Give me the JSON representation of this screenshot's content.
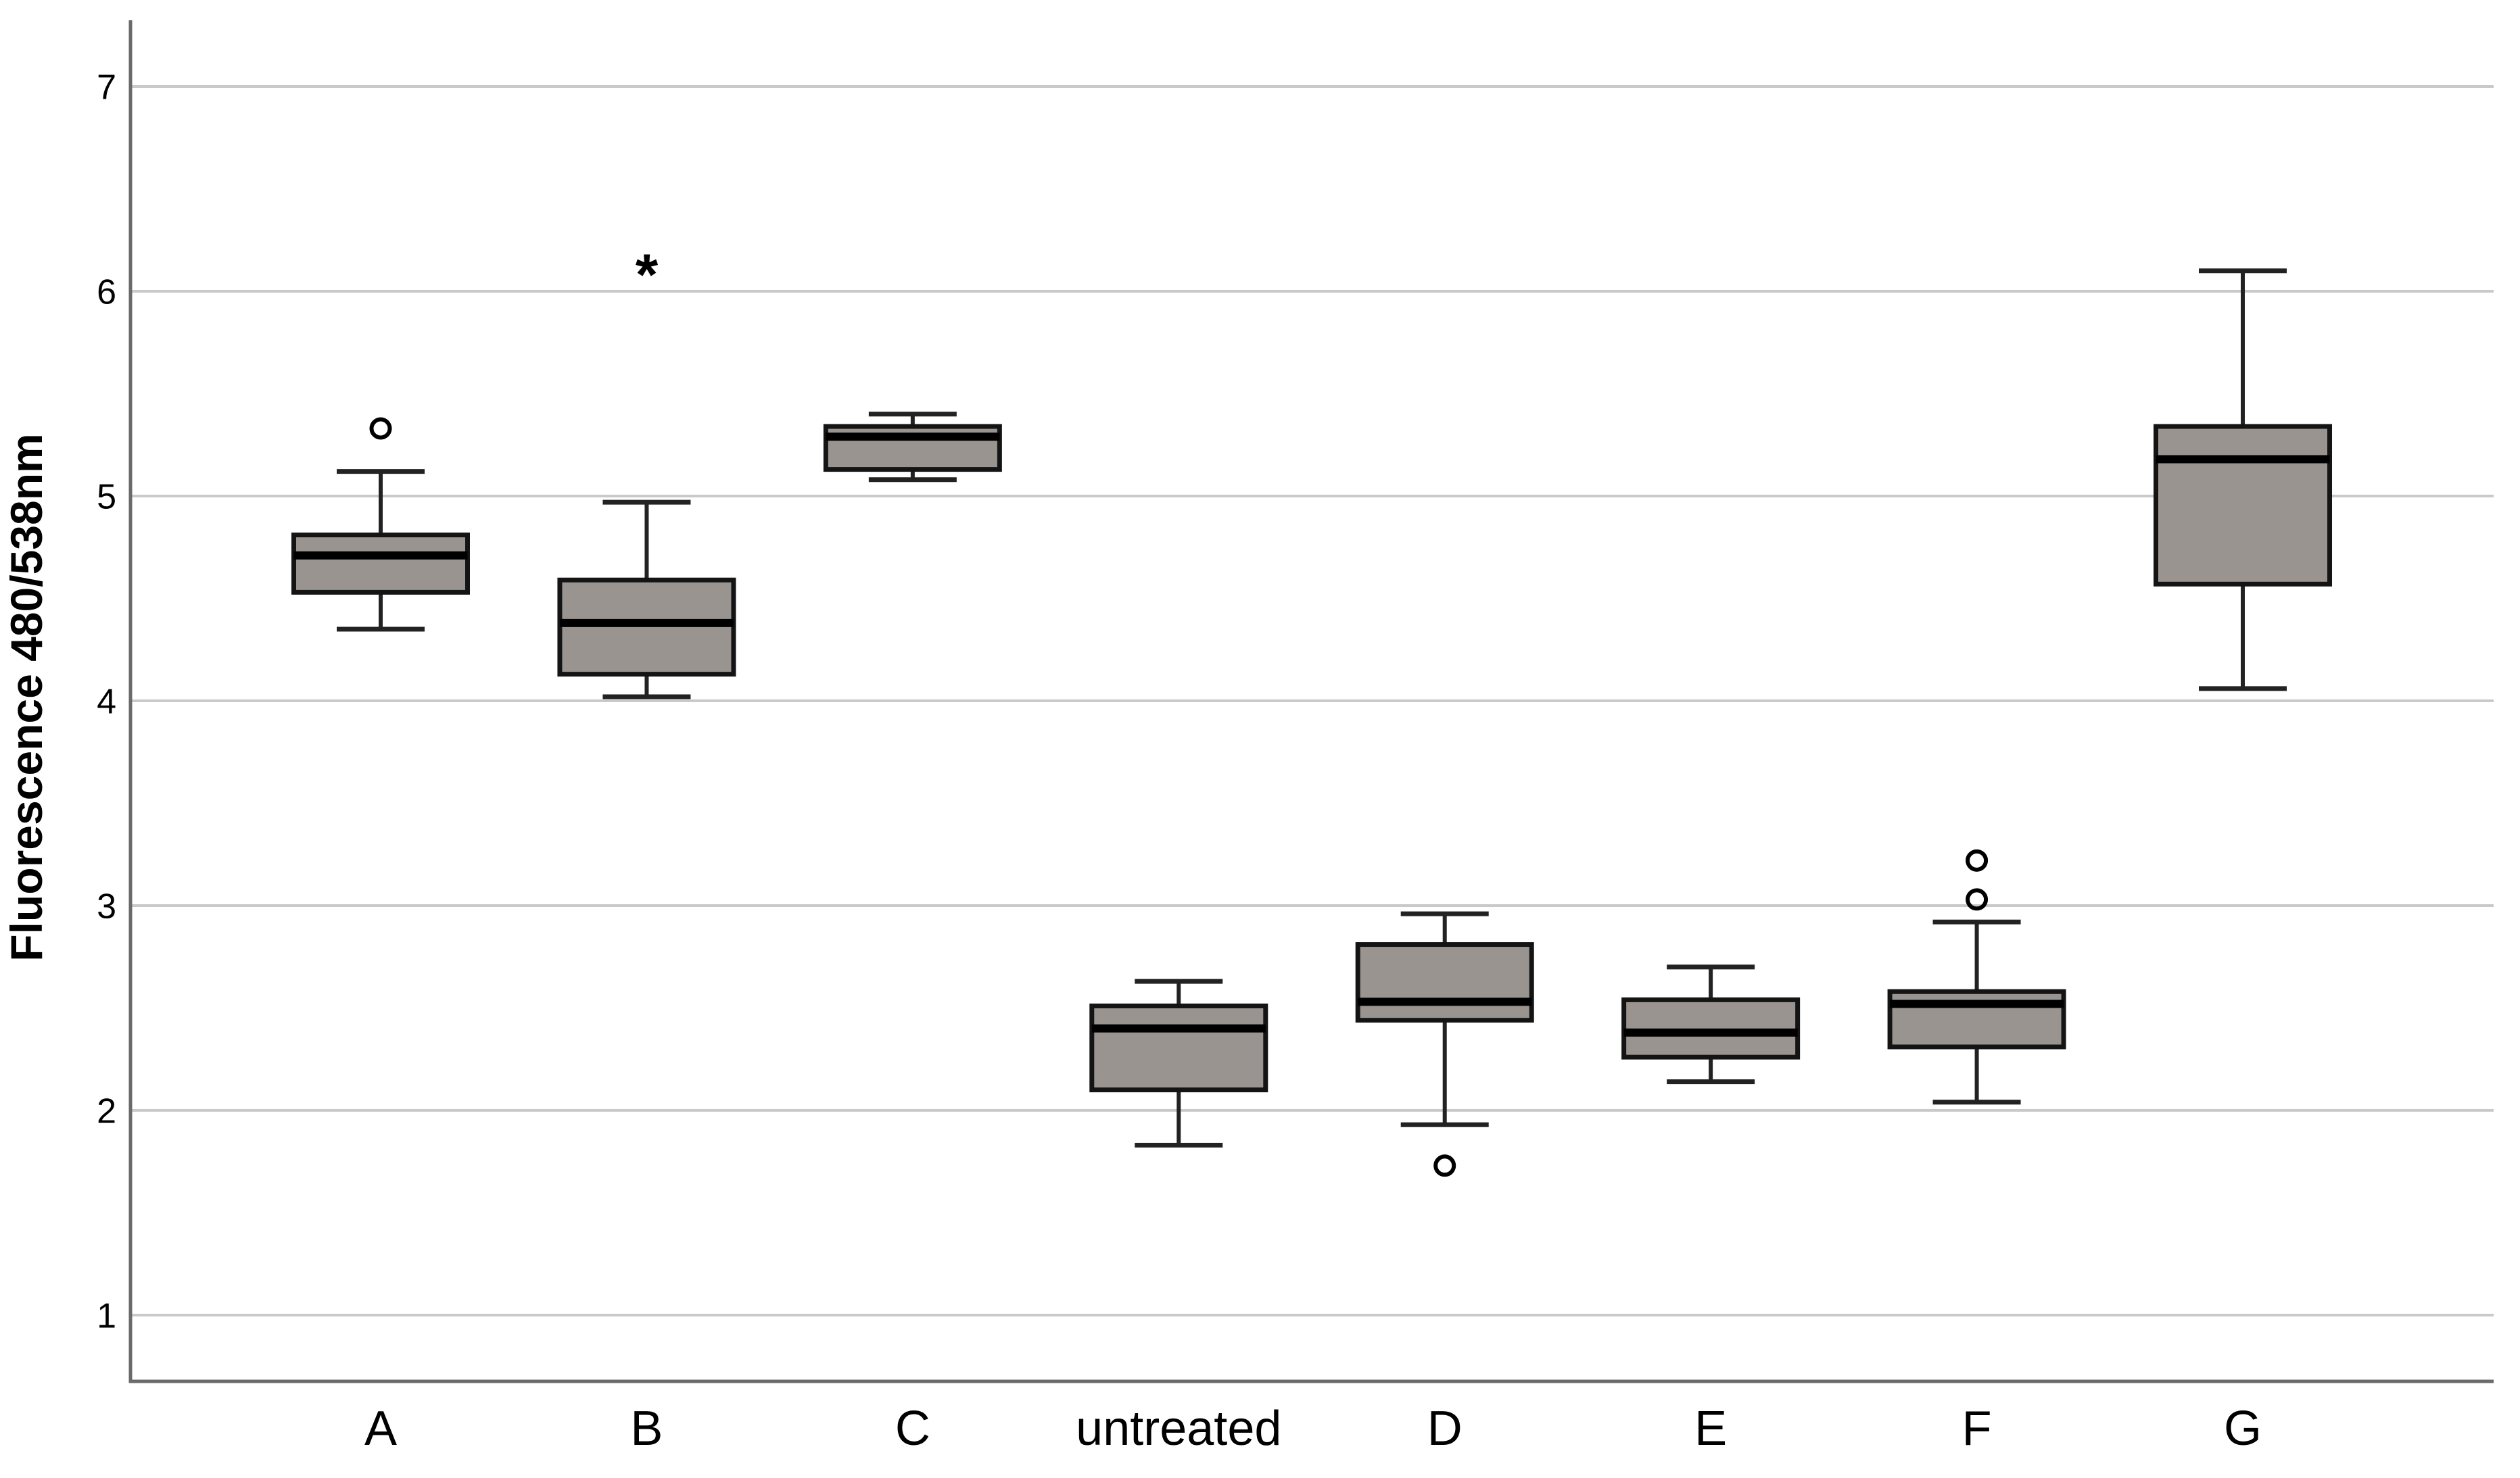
{
  "figure": {
    "background": "#ffffff"
  },
  "chart_data": {
    "type": "boxplot",
    "title": "",
    "xlabel": "",
    "ylabel": "Fluorescence 480/538nm",
    "categories": [
      "A",
      "B",
      "C",
      "untreated",
      "D",
      "E",
      "F",
      "G"
    ],
    "yticks": [
      1,
      2,
      3,
      4,
      5,
      6,
      7
    ],
    "ylim": [
      0.7,
      7.3
    ],
    "grid": true,
    "legend_position": "none",
    "boxes": [
      {
        "category": "A",
        "whisker_low": 4.35,
        "q1": 4.53,
        "median": 4.71,
        "q3": 4.81,
        "whisker_high": 5.12,
        "outliers": [
          {
            "marker": "circle",
            "value": 5.33
          }
        ]
      },
      {
        "category": "B",
        "whisker_low": 4.02,
        "q1": 4.13,
        "median": 4.38,
        "q3": 4.59,
        "whisker_high": 4.97,
        "outliers": [
          {
            "marker": "asterisk",
            "value": 6.14
          }
        ]
      },
      {
        "category": "C",
        "whisker_low": 5.08,
        "q1": 5.13,
        "median": 5.29,
        "q3": 5.34,
        "whisker_high": 5.4,
        "outliers": []
      },
      {
        "category": "untreated",
        "whisker_low": 1.83,
        "q1": 2.1,
        "median": 2.4,
        "q3": 2.51,
        "whisker_high": 2.63,
        "outliers": []
      },
      {
        "category": "D",
        "whisker_low": 1.93,
        "q1": 2.44,
        "median": 2.53,
        "q3": 2.81,
        "whisker_high": 2.96,
        "outliers": [
          {
            "marker": "circle",
            "value": 1.73
          }
        ]
      },
      {
        "category": "E",
        "whisker_low": 2.14,
        "q1": 2.26,
        "median": 2.38,
        "q3": 2.54,
        "whisker_high": 2.7,
        "outliers": []
      },
      {
        "category": "F",
        "whisker_low": 2.04,
        "q1": 2.31,
        "median": 2.52,
        "q3": 2.58,
        "whisker_high": 2.92,
        "outliers": [
          {
            "marker": "circle",
            "value": 3.03
          },
          {
            "marker": "circle",
            "value": 3.22
          }
        ]
      },
      {
        "category": "G",
        "whisker_low": 4.06,
        "q1": 4.57,
        "median": 5.18,
        "q3": 5.34,
        "whisker_high": 6.1,
        "outliers": []
      }
    ],
    "colors": {
      "box_fill": "#999490",
      "box_border": "#141414",
      "median_line": "#000000",
      "whisker": "#222222",
      "gridline": "#c9c9c9",
      "axis_line": "#6a6a6a",
      "text": "#000000",
      "background": "#ffffff"
    }
  }
}
